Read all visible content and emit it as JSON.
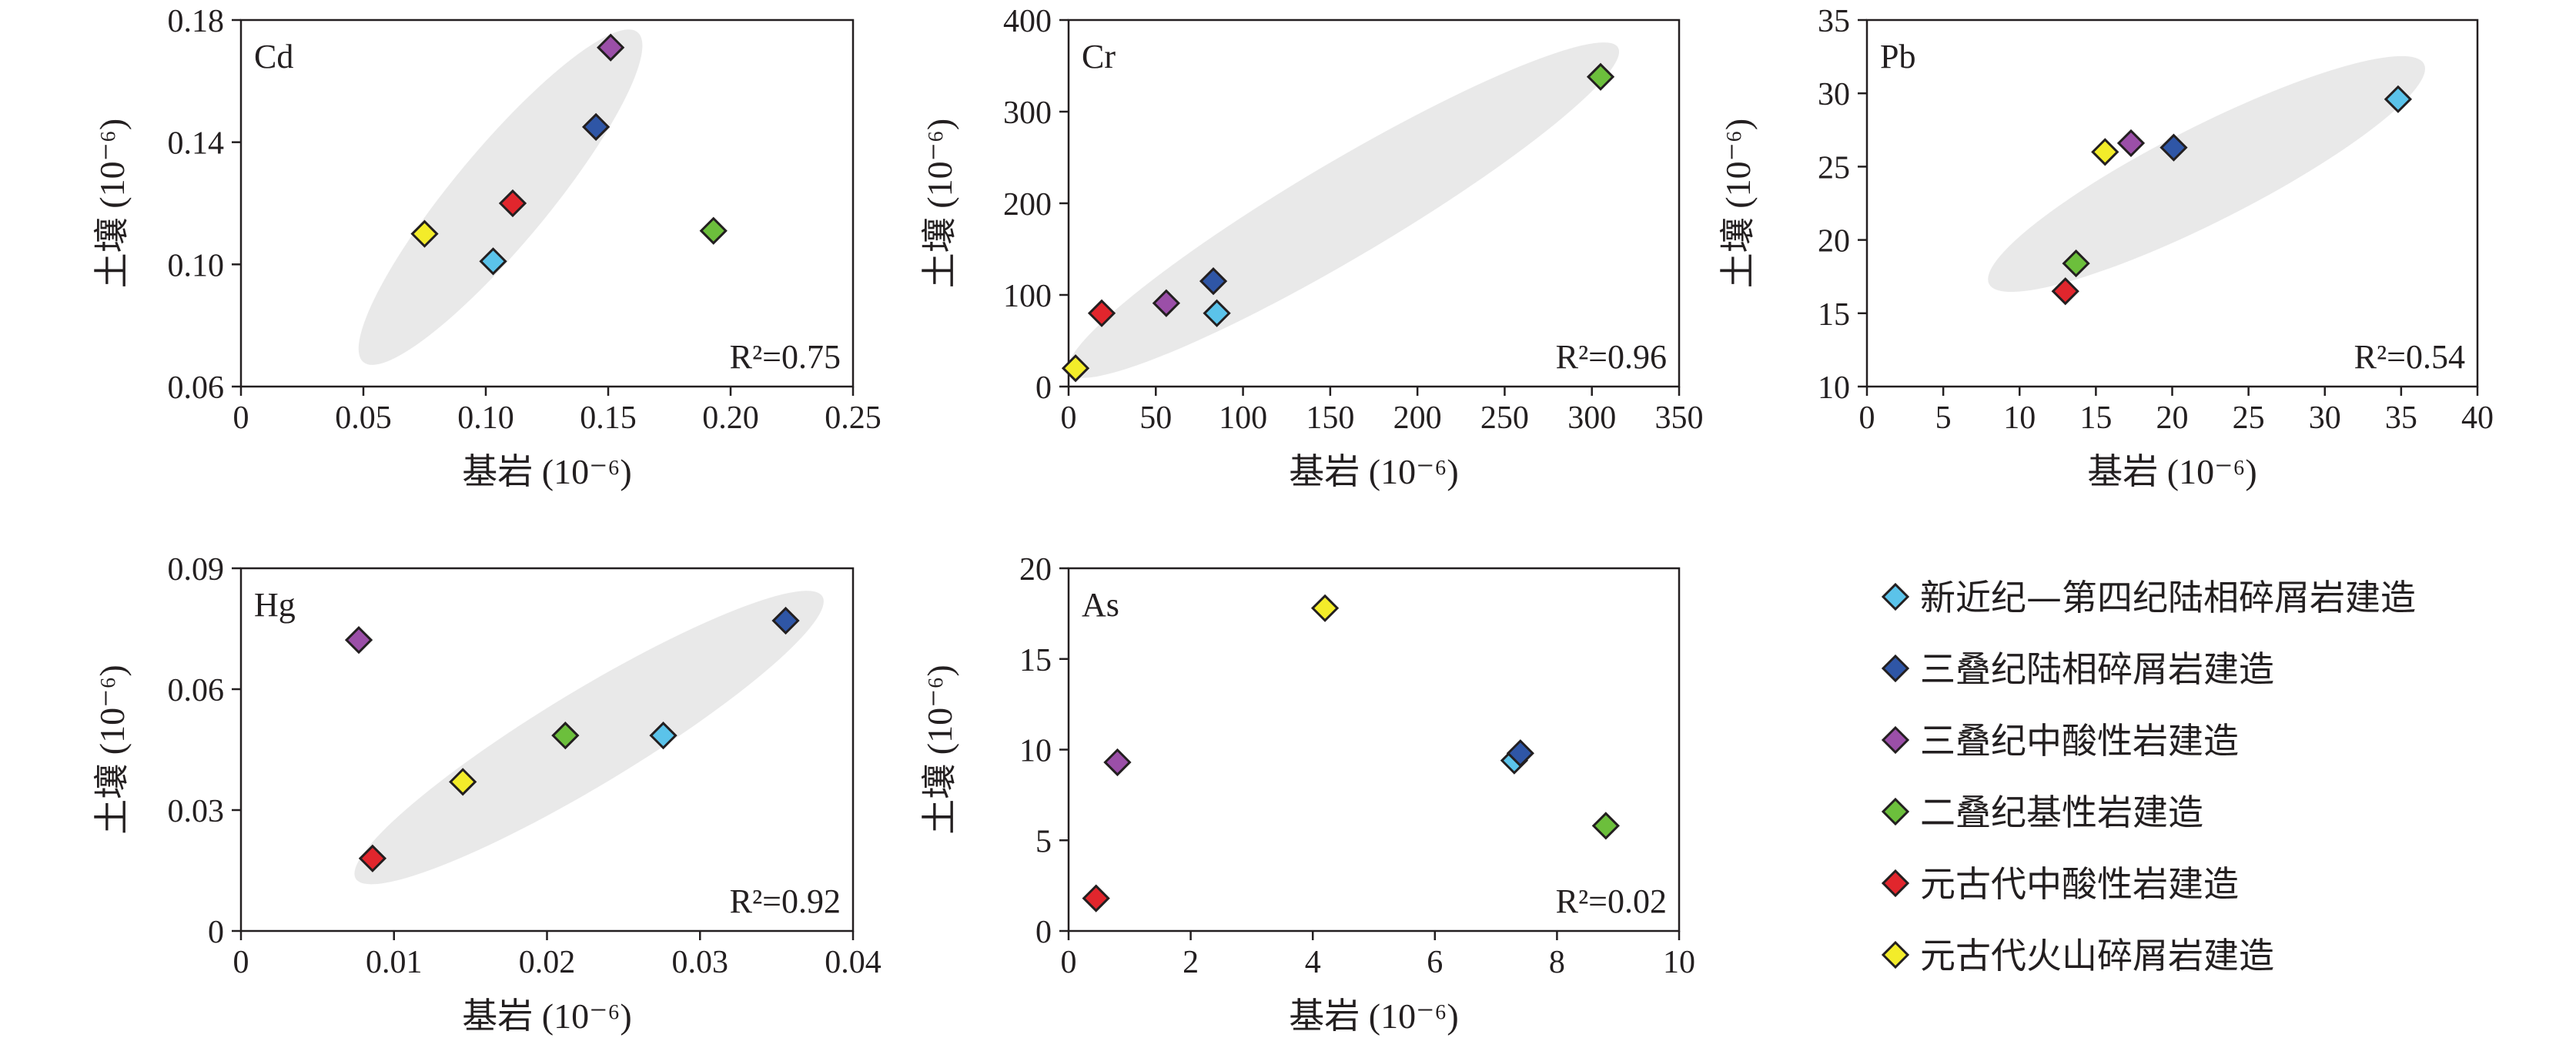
{
  "y_axis_label": "土壤 (10⁻⁶)",
  "x_axis_label": "基岩 (10⁻⁶)",
  "r2_prefix": "R²=",
  "colors": {
    "axis": "#231f20",
    "ellipse": "#e9e9e9",
    "marker_stroke": "#231f20"
  },
  "legend": [
    {
      "key": "neogene_quaternary_clastic",
      "label": "新近纪—第四纪陆相碎屑岩建造",
      "color": "#5bc3ea"
    },
    {
      "key": "triassic_clastic",
      "label": "三叠纪陆相碎屑岩建造",
      "color": "#2f56a6"
    },
    {
      "key": "triassic_intermediate_acidic",
      "label": "三叠纪中酸性岩建造",
      "color": "#9b4fa8"
    },
    {
      "key": "permian_basic",
      "label": "二叠纪基性岩建造",
      "color": "#6cbf3c"
    },
    {
      "key": "proterozoic_intermediate_acidic",
      "label": "元古代中酸性岩建造",
      "color": "#e1262d"
    },
    {
      "key": "proterozoic_volcanic_clastic",
      "label": "元古代火山碎屑岩建造",
      "color": "#f3ec2a"
    }
  ],
  "chart_data": [
    {
      "type": "scatter",
      "element": "Cd",
      "r2": "0.75",
      "xlim": [
        0,
        0.25
      ],
      "ylim": [
        0.06,
        0.18
      ],
      "xticks": [
        "0",
        "0.05",
        "0.10",
        "0.15",
        "0.20",
        "0.25"
      ],
      "yticks": [
        "0.06",
        "0.10",
        "0.14",
        "0.18"
      ],
      "ellipse": {
        "x1": 0.05,
        "y1": 0.068,
        "x2": 0.162,
        "y2": 0.176
      },
      "points": [
        {
          "series": "neogene_quaternary_clastic",
          "x": 0.103,
          "y": 0.101
        },
        {
          "series": "triassic_clastic",
          "x": 0.145,
          "y": 0.145
        },
        {
          "series": "triassic_intermediate_acidic",
          "x": 0.151,
          "y": 0.171
        },
        {
          "series": "permian_basic",
          "x": 0.193,
          "y": 0.111
        },
        {
          "series": "proterozoic_intermediate_acidic",
          "x": 0.111,
          "y": 0.12
        },
        {
          "series": "proterozoic_volcanic_clastic",
          "x": 0.075,
          "y": 0.11
        }
      ]
    },
    {
      "type": "scatter",
      "element": "Cr",
      "r2": "0.96",
      "xlim": [
        0,
        350
      ],
      "ylim": [
        0,
        400
      ],
      "xticks": [
        "0",
        "50",
        "100",
        "150",
        "200",
        "250",
        "300",
        "350"
      ],
      "yticks": [
        "0",
        "100",
        "200",
        "300",
        "400"
      ],
      "ellipse": {
        "x1": 0,
        "y1": 15,
        "x2": 315,
        "y2": 370
      },
      "points": [
        {
          "series": "neogene_quaternary_clastic",
          "x": 85,
          "y": 80
        },
        {
          "series": "triassic_clastic",
          "x": 83,
          "y": 115
        },
        {
          "series": "triassic_intermediate_acidic",
          "x": 56,
          "y": 91
        },
        {
          "series": "permian_basic",
          "x": 305,
          "y": 338
        },
        {
          "series": "proterozoic_intermediate_acidic",
          "x": 19,
          "y": 80
        },
        {
          "series": "proterozoic_volcanic_clastic",
          "x": 4,
          "y": 20
        }
      ]
    },
    {
      "type": "scatter",
      "element": "Pb",
      "r2": "0.54",
      "xlim": [
        0,
        40
      ],
      "ylim": [
        10,
        35
      ],
      "xticks": [
        "0",
        "5",
        "10",
        "15",
        "20",
        "25",
        "30",
        "35",
        "40"
      ],
      "yticks": [
        "10",
        "15",
        "20",
        "25",
        "30",
        "35"
      ],
      "ellipse": {
        "x1": 8,
        "y1": 17,
        "x2": 36.5,
        "y2": 32
      },
      "points": [
        {
          "series": "neogene_quaternary_clastic",
          "x": 34.8,
          "y": 29.6
        },
        {
          "series": "triassic_clastic",
          "x": 20.1,
          "y": 26.3
        },
        {
          "series": "triassic_intermediate_acidic",
          "x": 17.3,
          "y": 26.6
        },
        {
          "series": "permian_basic",
          "x": 13.7,
          "y": 18.4
        },
        {
          "series": "proterozoic_intermediate_acidic",
          "x": 13.0,
          "y": 16.5
        },
        {
          "series": "proterozoic_volcanic_clastic",
          "x": 15.6,
          "y": 26.0
        }
      ]
    },
    {
      "type": "scatter",
      "element": "Hg",
      "r2": "0.92",
      "xlim": [
        0,
        0.04
      ],
      "ylim": [
        0,
        0.09
      ],
      "xticks": [
        "0",
        "0.01",
        "0.02",
        "0.03",
        "0.04"
      ],
      "yticks": [
        "0",
        "0.03",
        "0.06",
        "0.09"
      ],
      "ellipse": {
        "x1": 0.0075,
        "y1": 0.013,
        "x2": 0.038,
        "y2": 0.083
      },
      "points": [
        {
          "series": "neogene_quaternary_clastic",
          "x": 0.0276,
          "y": 0.0485
        },
        {
          "series": "triassic_clastic",
          "x": 0.0356,
          "y": 0.077
        },
        {
          "series": "triassic_intermediate_acidic",
          "x": 0.0077,
          "y": 0.0722
        },
        {
          "series": "permian_basic",
          "x": 0.0212,
          "y": 0.0485
        },
        {
          "series": "proterozoic_intermediate_acidic",
          "x": 0.0086,
          "y": 0.018
        },
        {
          "series": "proterozoic_volcanic_clastic",
          "x": 0.0145,
          "y": 0.037
        }
      ]
    },
    {
      "type": "scatter",
      "element": "As",
      "r2": "0.02",
      "xlim": [
        0,
        10
      ],
      "ylim": [
        0,
        20
      ],
      "xticks": [
        "0",
        "2",
        "4",
        "6",
        "8",
        "10"
      ],
      "yticks": [
        "0",
        "5",
        "10",
        "15",
        "20"
      ],
      "points": [
        {
          "series": "neogene_quaternary_clastic",
          "x": 7.3,
          "y": 9.4
        },
        {
          "series": "triassic_clastic",
          "x": 7.4,
          "y": 9.8
        },
        {
          "series": "triassic_intermediate_acidic",
          "x": 0.8,
          "y": 9.3
        },
        {
          "series": "permian_basic",
          "x": 8.8,
          "y": 5.8
        },
        {
          "series": "proterozoic_intermediate_acidic",
          "x": 0.45,
          "y": 1.8
        },
        {
          "series": "proterozoic_volcanic_clastic",
          "x": 4.2,
          "y": 17.8
        }
      ]
    }
  ]
}
